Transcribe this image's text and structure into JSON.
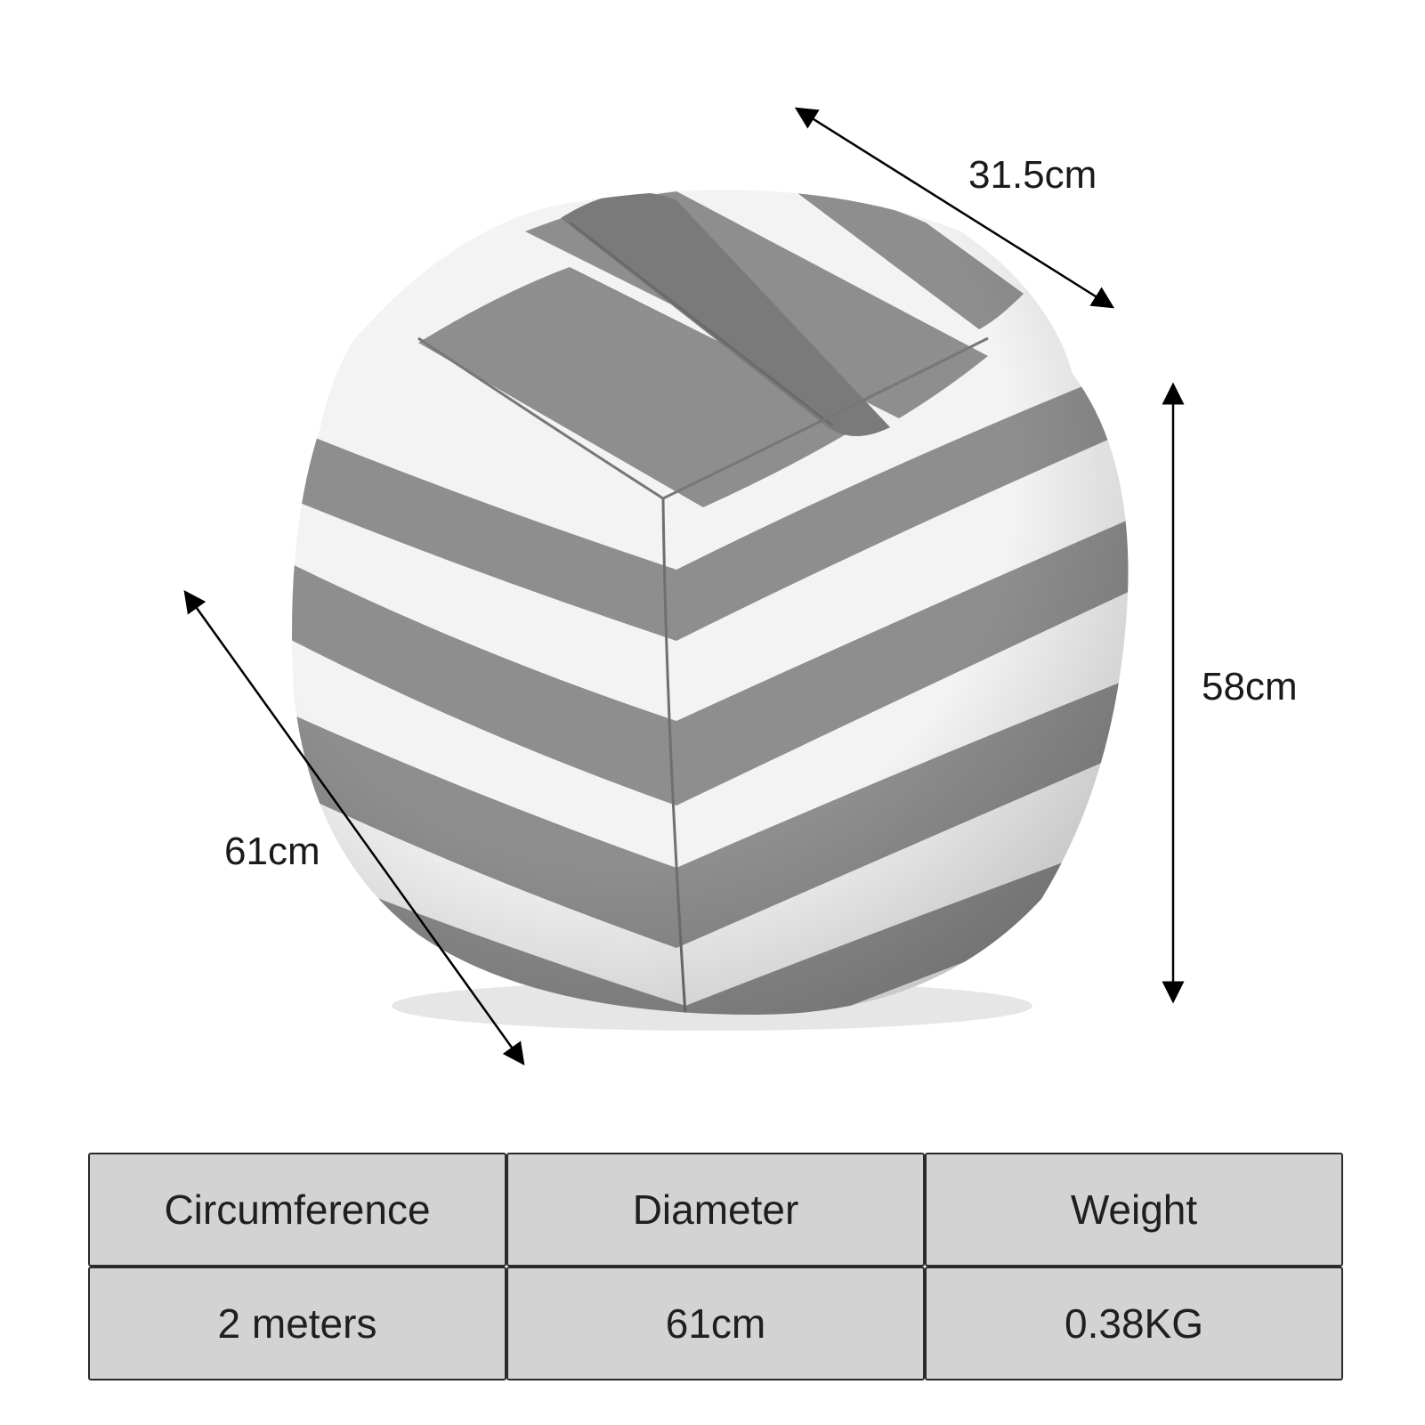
{
  "dimensions": {
    "depth": "31.5cm",
    "height": "58cm",
    "width": "61cm"
  },
  "table": {
    "headers": [
      "Circumference",
      "Diameter",
      "Weight"
    ],
    "values": [
      "2 meters",
      "61cm",
      "0.38KG"
    ]
  },
  "colors": {
    "stripe_gray": "#8c8c8c",
    "stripe_white": "#f2f2f2",
    "table_fill": "#d3d3d3",
    "arrow": "#000000"
  },
  "product": {
    "image": "striped-bean-bag-storage-icon"
  }
}
